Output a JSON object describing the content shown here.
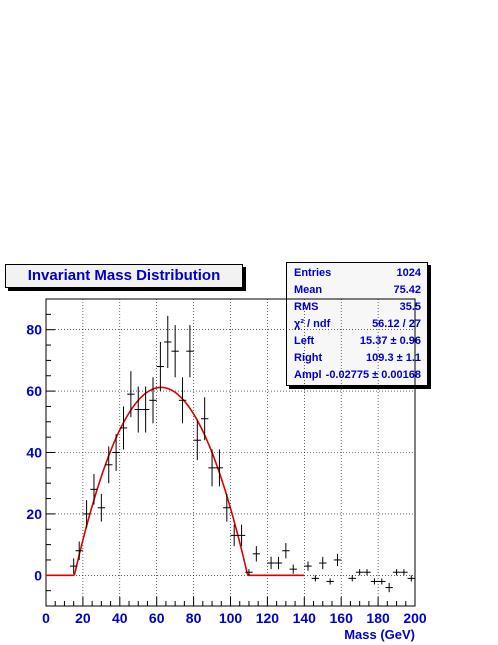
{
  "title": "Invariant Mass Distribution",
  "stats": [
    {
      "label": "Entries",
      "value": "1024"
    },
    {
      "label": "Mean",
      "value": "75.42"
    },
    {
      "label": "RMS",
      "value": "35.5"
    },
    {
      "label": "χ² / ndf",
      "value": "56.12 / 27"
    },
    {
      "label": "Left",
      "value": "15.37 ± 0.96"
    },
    {
      "label": "Right",
      "value": "109.3 ± 1.1"
    },
    {
      "label": "Ampl",
      "value": "-0.02775 ± 0.00168"
    }
  ],
  "chart_data": {
    "type": "scatter",
    "title": "Invariant Mass Distribution",
    "xlabel": "Mass (GeV)",
    "ylabel": "",
    "xlim": [
      0,
      200
    ],
    "ylim": [
      -10,
      90
    ],
    "xticks": [
      0,
      20,
      40,
      60,
      80,
      100,
      120,
      140,
      160,
      180,
      200
    ],
    "yticks": [
      0,
      20,
      40,
      60,
      80
    ],
    "grid": true,
    "legend": "none",
    "colors": {
      "points": "#000000",
      "fit": "#dd0000",
      "text": "#0000cc"
    },
    "points": [
      {
        "x": 15,
        "y": 3,
        "err": 2.5
      },
      {
        "x": 18,
        "y": 8,
        "err": 3
      },
      {
        "x": 22,
        "y": 20,
        "err": 4.5
      },
      {
        "x": 26,
        "y": 28,
        "err": 5
      },
      {
        "x": 30,
        "y": 22,
        "err": 4.5
      },
      {
        "x": 34,
        "y": 36,
        "err": 6
      },
      {
        "x": 38,
        "y": 40,
        "err": 6
      },
      {
        "x": 42,
        "y": 48,
        "err": 7
      },
      {
        "x": 46,
        "y": 59,
        "err": 7.5
      },
      {
        "x": 50,
        "y": 54,
        "err": 7.5
      },
      {
        "x": 54,
        "y": 54,
        "err": 7.5
      },
      {
        "x": 58,
        "y": 57,
        "err": 7.5
      },
      {
        "x": 62,
        "y": 68,
        "err": 8
      },
      {
        "x": 66,
        "y": 76,
        "err": 8.5
      },
      {
        "x": 70,
        "y": 73,
        "err": 8.5
      },
      {
        "x": 74,
        "y": 57,
        "err": 7.5
      },
      {
        "x": 78,
        "y": 73,
        "err": 8.5
      },
      {
        "x": 82,
        "y": 44,
        "err": 6.5
      },
      {
        "x": 86,
        "y": 51,
        "err": 7
      },
      {
        "x": 90,
        "y": 35,
        "err": 6
      },
      {
        "x": 94,
        "y": 35,
        "err": 6
      },
      {
        "x": 98,
        "y": 22,
        "err": 4.5
      },
      {
        "x": 102,
        "y": 13,
        "err": 3.5
      },
      {
        "x": 106,
        "y": 13,
        "err": 3.5
      },
      {
        "x": 110,
        "y": 1,
        "err": 1
      },
      {
        "x": 114,
        "y": 7,
        "err": 2.5
      },
      {
        "x": 122,
        "y": 4,
        "err": 2
      },
      {
        "x": 126,
        "y": 4,
        "err": 2
      },
      {
        "x": 130,
        "y": 8,
        "err": 2.5
      },
      {
        "x": 134,
        "y": 2,
        "err": 1.5
      },
      {
        "x": 142,
        "y": 3,
        "err": 1.5
      },
      {
        "x": 146,
        "y": -1,
        "err": 1
      },
      {
        "x": 150,
        "y": 4,
        "err": 2
      },
      {
        "x": 154,
        "y": -2,
        "err": 1
      },
      {
        "x": 158,
        "y": 5,
        "err": 2
      },
      {
        "x": 166,
        "y": -1,
        "err": 1
      },
      {
        "x": 170,
        "y": 1,
        "err": 1
      },
      {
        "x": 174,
        "y": 1,
        "err": 1
      },
      {
        "x": 178,
        "y": -2,
        "err": 1
      },
      {
        "x": 182,
        "y": -2,
        "err": 1
      },
      {
        "x": 186,
        "y": -4,
        "err": 1.5
      },
      {
        "x": 190,
        "y": 1,
        "err": 1
      },
      {
        "x": 194,
        "y": 1,
        "err": 1
      },
      {
        "x": 198,
        "y": -1,
        "err": 1
      }
    ],
    "fit": {
      "type": "polynomial-window",
      "left": 15.37,
      "right": 109.3,
      "ampl": -0.02775,
      "x_end": 140
    }
  }
}
